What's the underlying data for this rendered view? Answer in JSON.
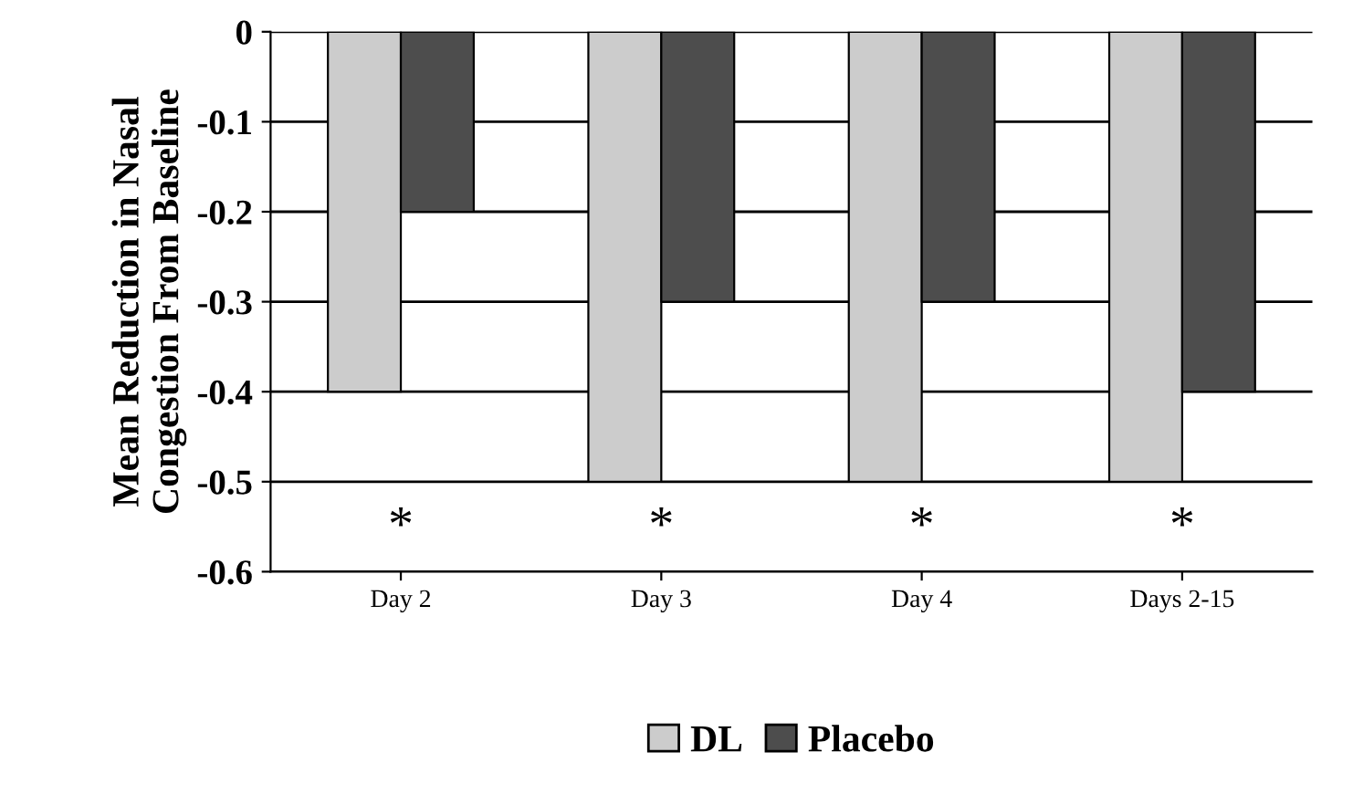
{
  "chart_data": {
    "type": "bar",
    "ylabel": "Mean Reduction in Nasal\nCongestion From Baseline",
    "categories": [
      "Day 2",
      "Day 3",
      "Day 4",
      "Days 2-15"
    ],
    "series": [
      {
        "name": "DL",
        "color": "#cccccc",
        "values": [
          -0.4,
          -0.5,
          -0.5,
          -0.5
        ]
      },
      {
        "name": "Placebo",
        "color": "#4d4d4d",
        "values": [
          -0.2,
          -0.3,
          -0.3,
          -0.4
        ]
      }
    ],
    "ylim": [
      -0.6,
      0
    ],
    "yticks": [
      -0.6,
      -0.5,
      -0.4,
      -0.3,
      -0.2,
      -0.1,
      0
    ],
    "grid": "y",
    "legend": "bottom",
    "annotations": [
      "*",
      "*",
      "*",
      "*"
    ]
  }
}
